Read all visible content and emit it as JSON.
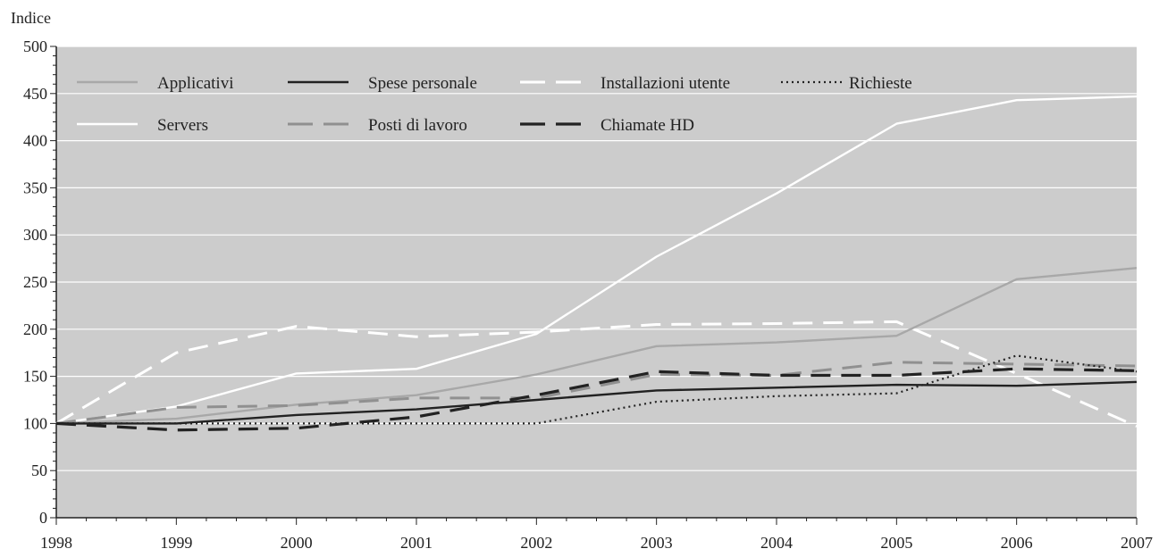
{
  "chart_data": {
    "type": "line",
    "ylabel": "Indice",
    "xlabel": "",
    "title": "",
    "ylim": [
      0,
      500
    ],
    "yticks": [
      0,
      50,
      100,
      150,
      200,
      250,
      300,
      350,
      400,
      450,
      500
    ],
    "x": [
      "1998",
      "1999",
      "2000",
      "2001",
      "2002",
      "2003",
      "2004",
      "2005",
      "2006",
      "2007"
    ],
    "grid": true,
    "legend_position": "top-left",
    "background": "#cccccc",
    "series": [
      {
        "name": "Applicativi",
        "color": "#a8a8a8",
        "style": "solid",
        "values": [
          100,
          105,
          120,
          130,
          152,
          182,
          186,
          193,
          253,
          265
        ]
      },
      {
        "name": "Spese personale",
        "color": "#222222",
        "style": "solid",
        "values": [
          100,
          100,
          109,
          115,
          125,
          135,
          138,
          141,
          140,
          144
        ]
      },
      {
        "name": "Installazioni utente",
        "color": "#ffffff",
        "style": "dashed",
        "values": [
          100,
          175,
          203,
          192,
          197,
          205,
          206,
          208,
          153,
          97
        ]
      },
      {
        "name": "Richieste",
        "color": "#222222",
        "style": "dotted",
        "values": [
          100,
          100,
          100,
          100,
          100,
          123,
          129,
          132,
          172,
          155
        ]
      },
      {
        "name": "Servers",
        "color": "#ffffff",
        "style": "solid",
        "values": [
          100,
          118,
          153,
          158,
          195,
          277,
          344,
          418,
          443,
          447
        ]
      },
      {
        "name": "Posti di lavoro",
        "color": "#909090",
        "style": "dashed",
        "values": [
          100,
          117,
          119,
          127,
          127,
          152,
          151,
          165,
          163,
          161
        ]
      },
      {
        "name": "Chiamate HD",
        "color": "#222222",
        "style": "dashed",
        "values": [
          100,
          93,
          95,
          107,
          130,
          155,
          151,
          151,
          158,
          156
        ]
      }
    ]
  }
}
